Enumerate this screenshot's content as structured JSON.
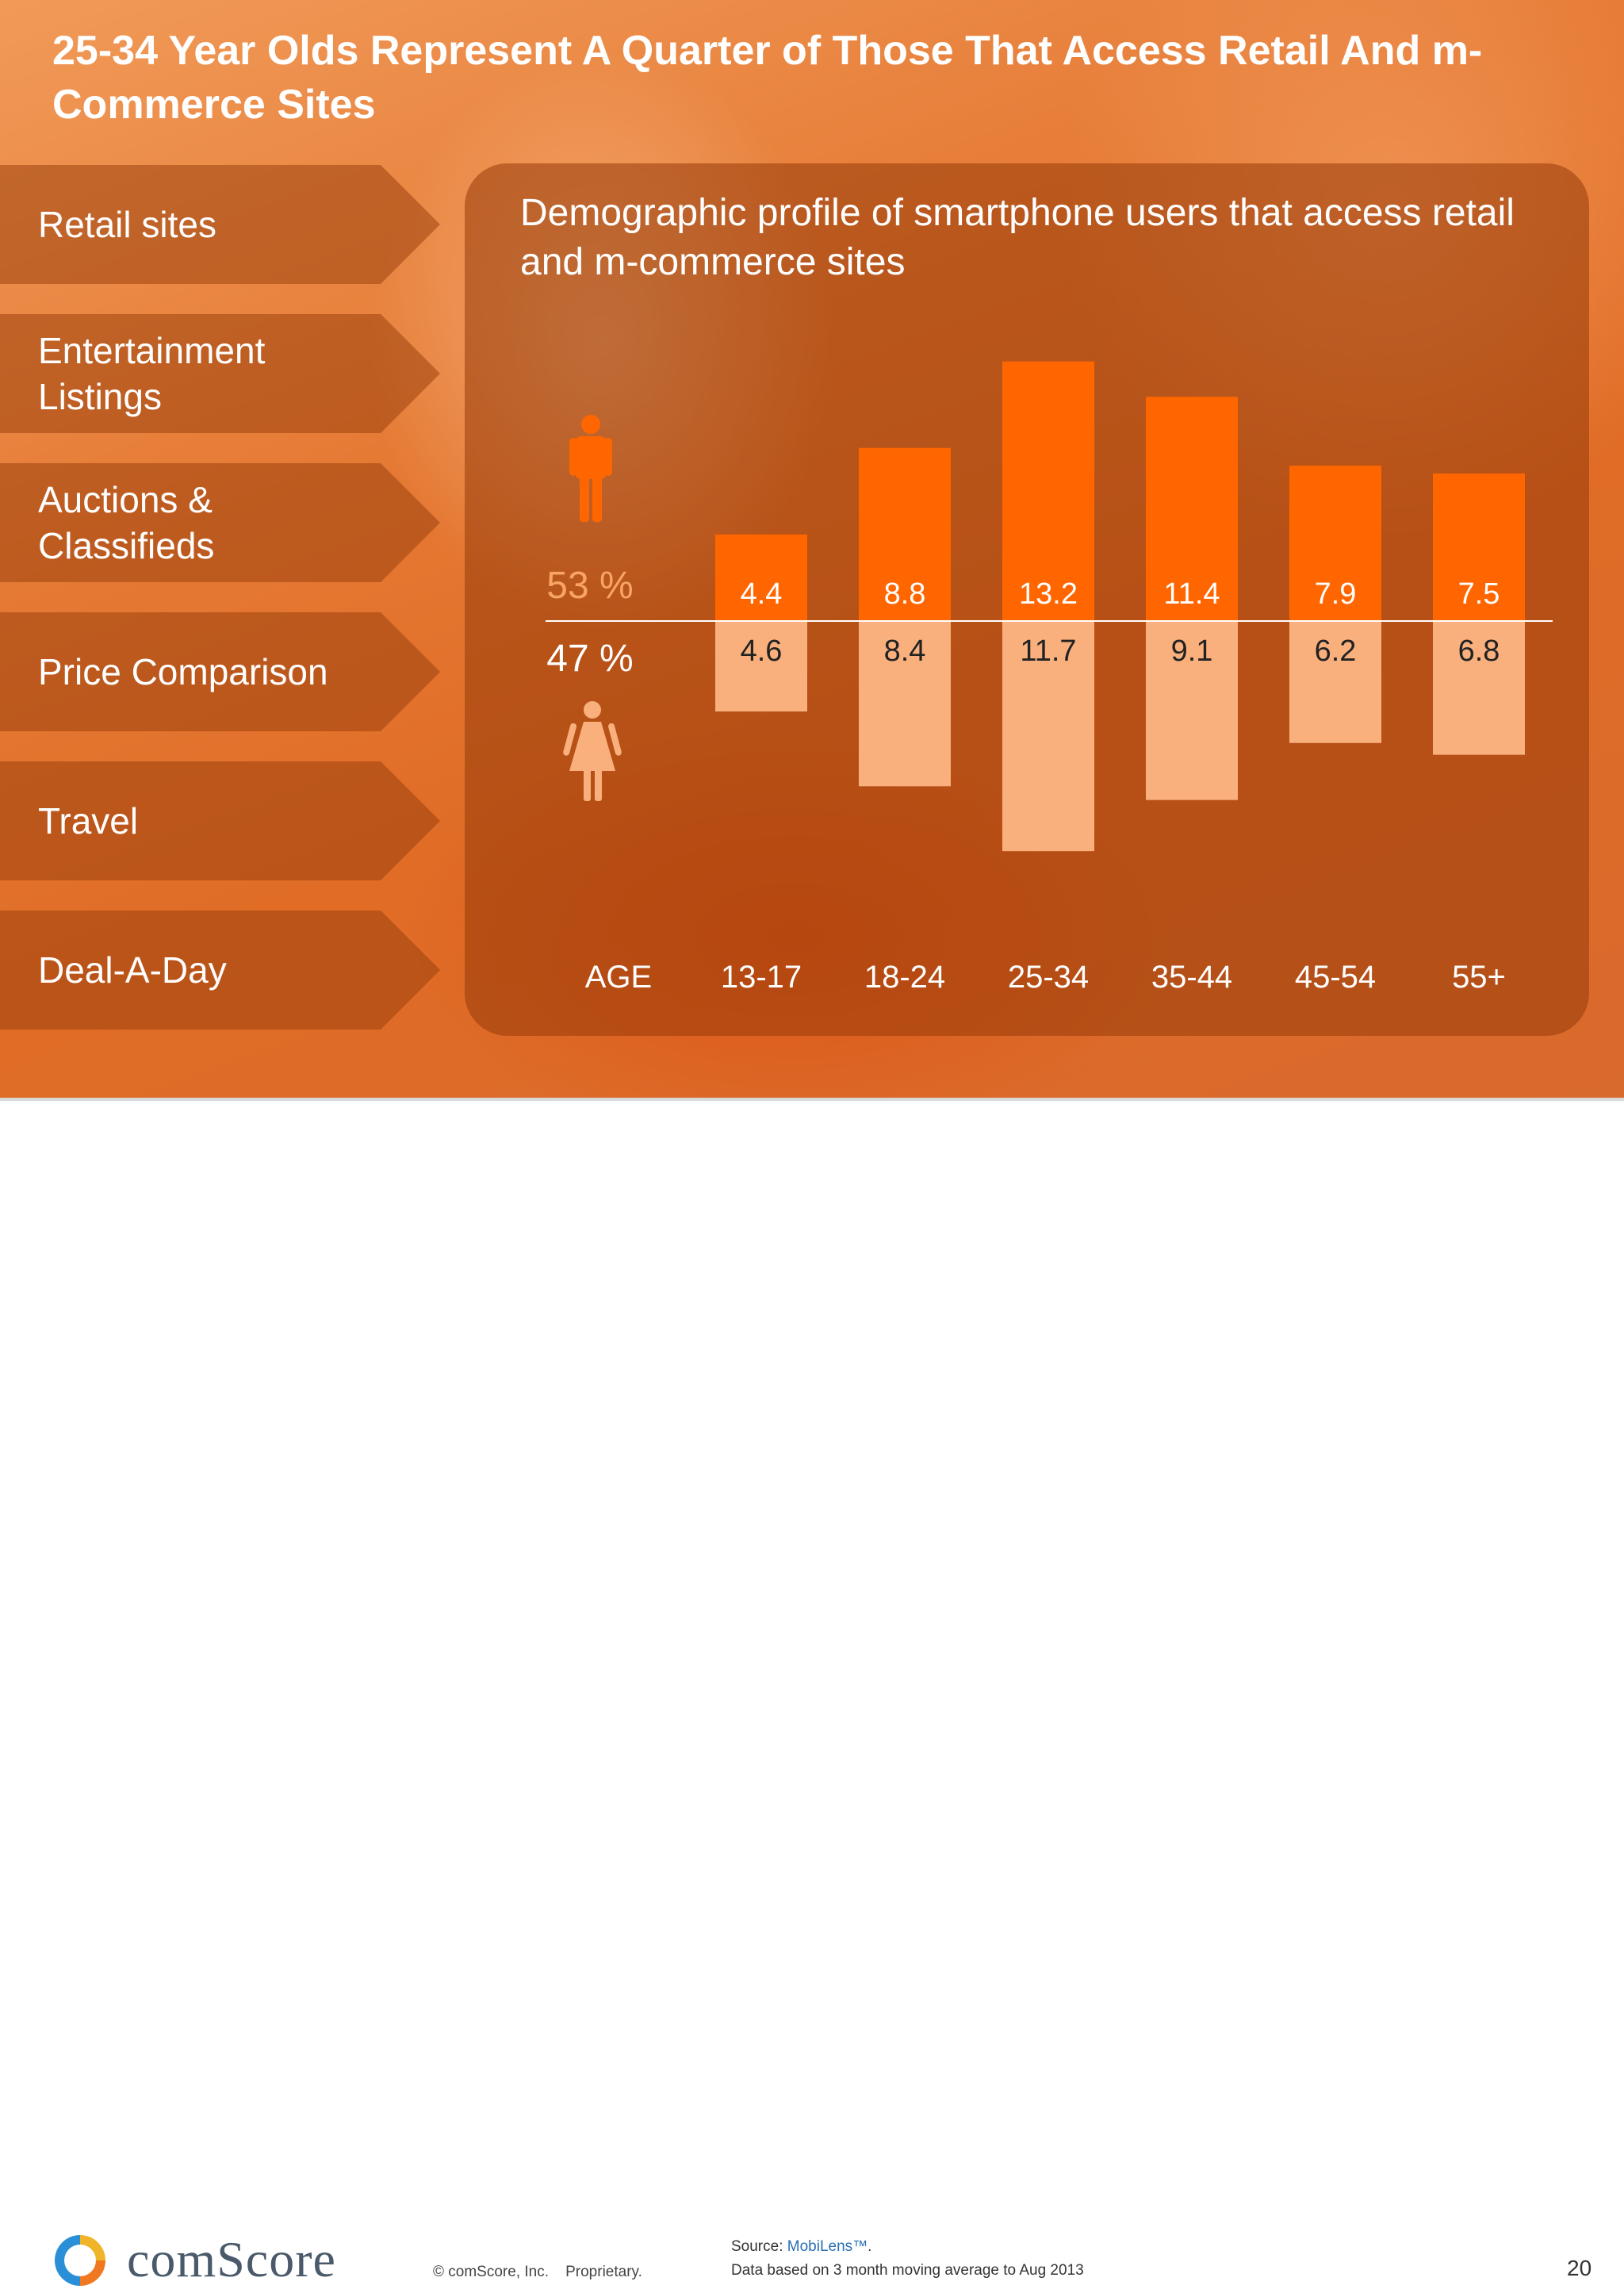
{
  "title": "25-34 Year Olds Represent A Quarter of Those That Access Retail And m-Commerce Sites",
  "categories_nav": [
    {
      "label": "Retail sites"
    },
    {
      "label": "Entertainment\nListings"
    },
    {
      "label": "Auctions &\nClassifieds"
    },
    {
      "label": "Price Comparison"
    },
    {
      "label": "Travel"
    },
    {
      "label": "Deal-A-Day"
    }
  ],
  "colors": {
    "male": "#ff6600",
    "female": "#f9b07d",
    "text_dark": "#222222",
    "pct_male": "#f9a465"
  },
  "icons": {
    "male": "male-person-icon",
    "female": "female-person-icon"
  },
  "chart_data": {
    "type": "bar",
    "title": "Demographic profile of smartphone users that access retail and m-commerce sites",
    "xlabel": "AGE",
    "categories": [
      "13-17",
      "18-24",
      "25-34",
      "35-44",
      "45-54",
      "55+"
    ],
    "series": [
      {
        "name": "53 %",
        "values": [
          4.4,
          8.8,
          13.2,
          11.4,
          7.9,
          7.5
        ]
      },
      {
        "name": "47 %",
        "values": [
          4.6,
          8.4,
          11.7,
          9.1,
          6.2,
          6.8
        ]
      }
    ],
    "grid": false
  },
  "footer": {
    "logo": "comScore",
    "copyright": "© comScore, Inc.    Proprietary.",
    "source_prefix": "Source: ",
    "source_brand": "MobiLens™",
    "source_suffix": ".",
    "note": "Data based on 3 month moving average to Aug 2013",
    "page": "20"
  }
}
